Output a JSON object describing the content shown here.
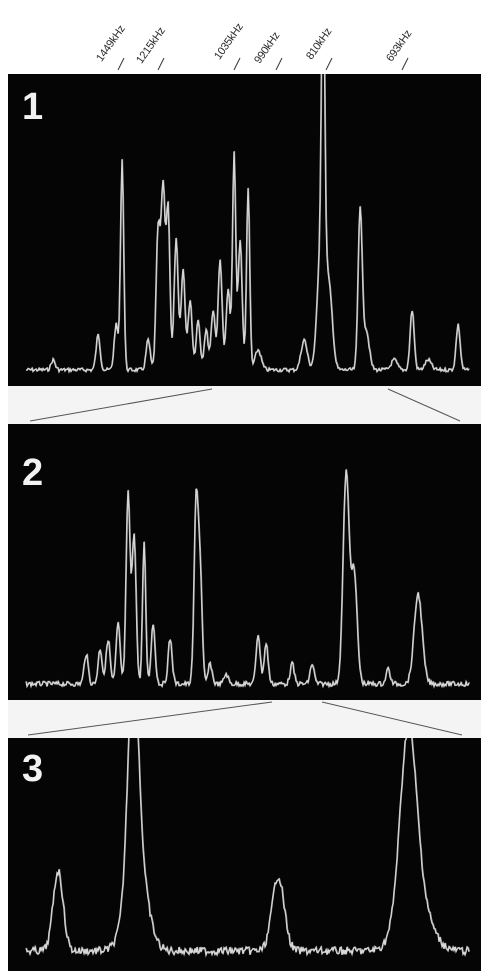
{
  "frequency_labels": [
    {
      "text": "1449kHz"
    },
    {
      "text": "1215kHz"
    },
    {
      "text": "1035kHz"
    },
    {
      "text": "990kHz"
    },
    {
      "text": "810kHz"
    },
    {
      "text": "693kHz"
    }
  ],
  "panels": [
    {
      "number": "1"
    },
    {
      "number": "2"
    },
    {
      "number": "3"
    }
  ],
  "colors": {
    "panel_background": "#050505",
    "trace": "#e8e8e8",
    "page_background": "#ffffff",
    "zoom_lines": "#555555"
  }
}
